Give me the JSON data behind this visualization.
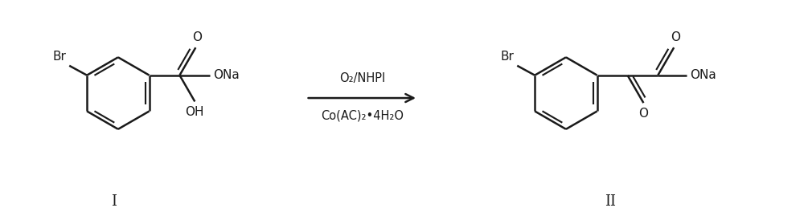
{
  "bg_color": "#ffffff",
  "line_color": "#1a1a1a",
  "line_width": 1.8,
  "arrow_above": "O₂/NHPI",
  "arrow_below": "Co(AC)₂•4H₂O",
  "label_I": "I",
  "label_II": "II",
  "label_Br": "Br",
  "label_OH": "OH",
  "label_ONa": "ONa",
  "label_O": "O",
  "figsize": [
    10.0,
    2.64
  ],
  "dpi": 100
}
